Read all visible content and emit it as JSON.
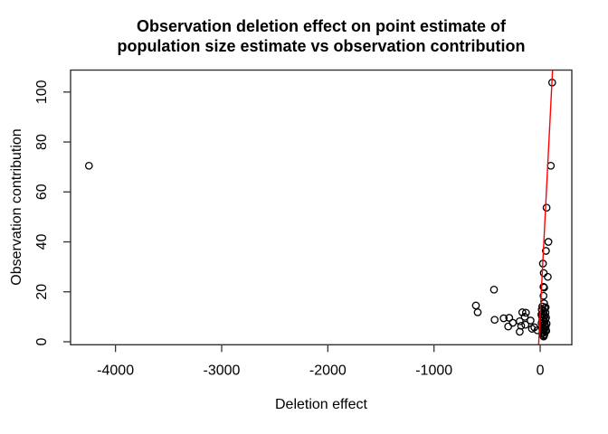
{
  "figure": {
    "title_line1": "Observation deletion effect on point estimate of",
    "title_line2": "population size estimate vs observation contribution"
  },
  "chart_data": {
    "type": "scatter",
    "title": "Observation deletion effect on point estimate of population size estimate vs observation contribution",
    "xlabel": "Deletion effect",
    "ylabel": "Observation contribution",
    "x_ticks": [
      "-4000",
      "-3000",
      "-2000",
      "-1000",
      "0"
    ],
    "x_tick_values": [
      -4000,
      -3000,
      -2000,
      -1000,
      0
    ],
    "y_ticks": [
      "0",
      "20",
      "40",
      "60",
      "80",
      "100"
    ],
    "y_tick_values": [
      0,
      20,
      40,
      60,
      80,
      100
    ],
    "xlim": [
      -4423,
      298
    ],
    "ylim": [
      -1.2,
      108.8
    ],
    "grid": false,
    "legend": "none",
    "marker": "open-circle",
    "point_color": "#000000",
    "axis_color": "#333333",
    "line_color": "#ff0000",
    "regression_line": {
      "x1": -14.5,
      "y1": -1.2,
      "x2": 116.7,
      "y2": 108.8
    },
    "points": [
      [
        -4250,
        70.5
      ],
      [
        -605,
        14.5
      ],
      [
        -588,
        11.8
      ],
      [
        -435,
        20.9
      ],
      [
        -429,
        8.8
      ],
      [
        -344,
        9.4
      ],
      [
        -301,
        6.1
      ],
      [
        -292,
        9.6
      ],
      [
        -258,
        7.6
      ],
      [
        -193,
        8.2
      ],
      [
        -193,
        4.0
      ],
      [
        -179,
        6.4
      ],
      [
        -168,
        11.8
      ],
      [
        -145,
        10.0
      ],
      [
        -139,
        6.8
      ],
      [
        -134,
        11.6
      ],
      [
        -91,
        8.5
      ],
      [
        -77,
        5.2
      ],
      [
        -55,
        5.8
      ],
      [
        -26,
        4.6
      ],
      [
        113,
        103.8
      ],
      [
        100,
        70.5
      ],
      [
        60,
        53.7
      ],
      [
        77,
        40.0
      ],
      [
        54,
        36.4
      ],
      [
        26,
        31.3
      ],
      [
        34,
        27.5
      ],
      [
        71,
        26.0
      ],
      [
        31,
        22.0
      ],
      [
        37,
        21.7
      ],
      [
        31,
        18.4
      ],
      [
        37,
        15.4
      ],
      [
        20,
        14.1
      ],
      [
        42,
        13.5
      ],
      [
        15,
        12.9
      ],
      [
        35,
        12.3
      ],
      [
        50,
        11.7
      ],
      [
        25,
        11.2
      ],
      [
        40,
        10.6
      ],
      [
        18,
        10.1
      ],
      [
        33,
        9.5
      ],
      [
        48,
        9.0
      ],
      [
        22,
        8.5
      ],
      [
        38,
        8.0
      ],
      [
        13,
        7.5
      ],
      [
        44,
        7.0
      ],
      [
        28,
        6.5
      ],
      [
        52,
        6.0
      ],
      [
        17,
        5.5
      ],
      [
        36,
        5.1
      ],
      [
        24,
        4.6
      ],
      [
        46,
        4.2
      ],
      [
        30,
        3.8
      ],
      [
        20,
        3.3
      ],
      [
        40,
        2.9
      ],
      [
        28,
        2.5
      ],
      [
        55,
        9.7
      ],
      [
        60,
        7.2
      ],
      [
        12,
        10.9
      ],
      [
        52,
        13.8
      ],
      [
        58,
        4.4
      ],
      [
        33,
        2.1
      ]
    ]
  }
}
